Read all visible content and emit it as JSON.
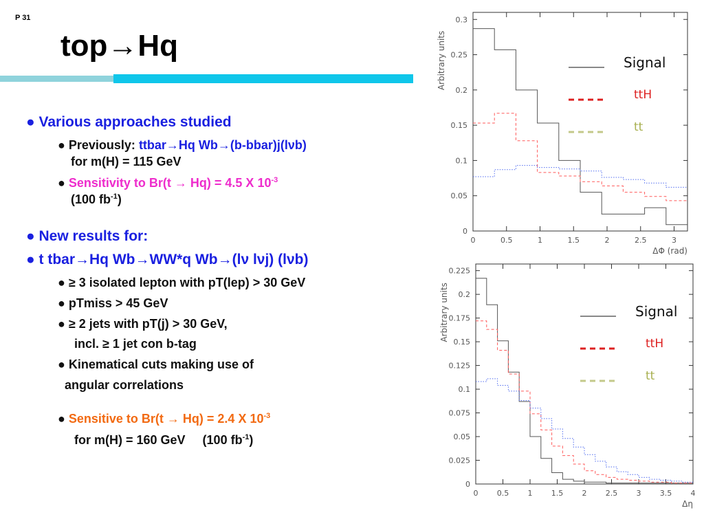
{
  "page_number": "P 31",
  "title": "top→Hq",
  "bullets": {
    "b1": "● Various approaches studied",
    "b1_sub1_bullet": "●",
    "b1_sub1_prefix": "Previously: ",
    "b1_sub1_blue": "ttbar→Hq Wb→(b-bbar)j(lνb)",
    "b1_sub1_line2": "for m(H) = 115 GeV",
    "b1_sub2_bullet": "●",
    "b1_sub2_main": "Sensitivity to Br(t → Hq) = 4.5 X 10",
    "b1_sub2_exp": "-3",
    "b1_sub2_line2_pre": "(100 fb",
    "b1_sub2_line2_exp": "-1",
    "b1_sub2_line2_post": ")",
    "b2": "● New results for:",
    "b3": "● t tbar→Hq Wb→WW*q Wb→(lν lνj) (lνb)",
    "c1": "● ≥ 3 isolated lepton with pT(lep) > 30 GeV",
    "c2": "● pTmiss > 45 GeV",
    "c3": "● ≥ 2 jets with pT(j) > 30 GeV,",
    "c3b": "incl. ≥ 1 jet con b-tag",
    "c4": "● Kinematical cuts making use of",
    "c4b": "angular correlations",
    "c5_bullet": "●",
    "c5_main": "Sensitive to Br(t → Hq) = 2.4 X 10",
    "c5_exp": "-3",
    "c5_line2_pre": "for m(H) = 160 GeV     (100 fb",
    "c5_line2_exp": "-1",
    "c5_line2_post": ")"
  },
  "colors": {
    "signal": "#555555",
    "tth": "#ff5a5a",
    "tt": "#4f6bf0",
    "accent_bar": "#0fc6ea",
    "accent_bar_light": "#8fd3dc",
    "legend_tth_text": "#dd2020",
    "legend_tt_text": "#a8b050"
  },
  "chart_data": [
    {
      "type": "histogram",
      "ylabel": "Arbitrary units",
      "xlabel": "ΔΦ (rad)",
      "xlim": [
        0,
        3.2
      ],
      "ylim": [
        0,
        0.31
      ],
      "x_ticks": [
        "0",
        "0.5",
        "1",
        "1.5",
        "2",
        "2.5",
        "3"
      ],
      "y_ticks": [
        "0",
        "0.05",
        "0.1",
        "0.15",
        "0.2",
        "0.25",
        "0.3"
      ],
      "bin_edges": [
        0,
        0.32,
        0.64,
        0.96,
        1.28,
        1.6,
        1.92,
        2.24,
        2.56,
        2.88,
        3.2
      ],
      "legend": [
        "Signal",
        "ttH",
        "tt"
      ],
      "series": [
        {
          "name": "Signal",
          "values": [
            0.287,
            0.257,
            0.2,
            0.153,
            0.1,
            0.055,
            0.024,
            0.024,
            0.033,
            0.009
          ]
        },
        {
          "name": "ttH",
          "values": [
            0.153,
            0.167,
            0.128,
            0.083,
            0.078,
            0.07,
            0.064,
            0.055,
            0.049,
            0.043
          ]
        },
        {
          "name": "tt",
          "values": [
            0.077,
            0.087,
            0.093,
            0.09,
            0.088,
            0.085,
            0.076,
            0.073,
            0.068,
            0.062
          ]
        }
      ]
    },
    {
      "type": "histogram",
      "ylabel": "Arbitrary units",
      "xlabel": "Δη",
      "xlim": [
        0,
        4
      ],
      "ylim": [
        0,
        0.232
      ],
      "x_ticks": [
        "0",
        "0.5",
        "1",
        "1.5",
        "2",
        "2.5",
        "3",
        "3.5",
        "4"
      ],
      "y_ticks": [
        "0",
        "0.025",
        "0.05",
        "0.075",
        "0.1",
        "0.125",
        "0.15",
        "0.175",
        "0.2",
        "0.225"
      ],
      "bin_edges": [
        0,
        0.2,
        0.4,
        0.6,
        0.8,
        1.0,
        1.2,
        1.4,
        1.6,
        1.8,
        2.0,
        2.2,
        2.4,
        2.6,
        2.8,
        3.0,
        3.2,
        3.4,
        3.6,
        3.8,
        4.0
      ],
      "legend": [
        "Signal",
        "ttH",
        "tt"
      ],
      "series": [
        {
          "name": "Signal",
          "values": [
            0.217,
            0.189,
            0.151,
            0.118,
            0.087,
            0.05,
            0.027,
            0.012,
            0.005,
            0.003,
            0.002,
            0.002,
            0.001,
            0.001,
            0.001,
            0.001,
            0.001,
            0.001,
            0.001,
            0.001
          ]
        },
        {
          "name": "ttH",
          "values": [
            0.172,
            0.163,
            0.141,
            0.116,
            0.098,
            0.074,
            0.057,
            0.04,
            0.03,
            0.021,
            0.014,
            0.01,
            0.007,
            0.005,
            0.004,
            0.003,
            0.002,
            0.002,
            0.001,
            0.001
          ]
        },
        {
          "name": "tt",
          "values": [
            0.108,
            0.111,
            0.104,
            0.098,
            0.088,
            0.08,
            0.069,
            0.058,
            0.048,
            0.039,
            0.031,
            0.024,
            0.018,
            0.013,
            0.01,
            0.007,
            0.005,
            0.004,
            0.003,
            0.002
          ]
        }
      ]
    }
  ]
}
